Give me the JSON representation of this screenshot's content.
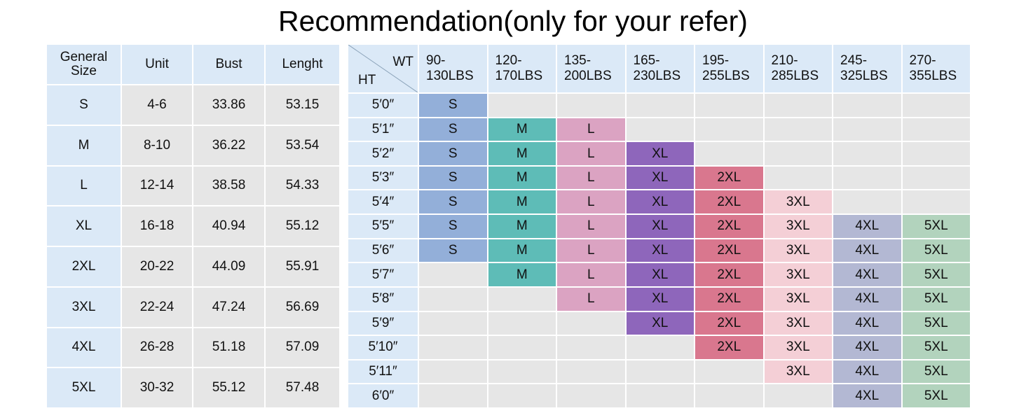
{
  "title": "Recommendation(only for your refer)",
  "size_table": {
    "headers": [
      "General Size",
      "Unit",
      "Bust",
      "Lenght"
    ],
    "rows": [
      [
        "S",
        "4-6",
        "33.86",
        "53.15"
      ],
      [
        "M",
        "8-10",
        "36.22",
        "53.54"
      ],
      [
        "L",
        "12-14",
        "38.58",
        "54.33"
      ],
      [
        "XL",
        "16-18",
        "40.94",
        "55.12"
      ],
      [
        "2XL",
        "20-22",
        "44.09",
        "55.91"
      ],
      [
        "3XL",
        "22-24",
        "47.24",
        "56.69"
      ],
      [
        "4XL",
        "26-28",
        "51.18",
        "57.09"
      ],
      [
        "5XL",
        "30-32",
        "55.12",
        "57.48"
      ]
    ]
  },
  "recommendation": {
    "wt_label": "WT",
    "ht_label": "HT",
    "weights": [
      "90-\n130LBS",
      "120-\n170LBS",
      "135-\n200LBS",
      "165-\n230LBS",
      "195-\n255LBS",
      "210-\n285LBS",
      "245-\n325LBS",
      "270-\n355LBS"
    ],
    "heights": [
      "5′0″",
      "5′1″",
      "5′2″",
      "5′3″",
      "5′4″",
      "5′5″",
      "5′6″",
      "5′7″",
      "5′8″",
      "5′9″",
      "5′10″",
      "5′11″",
      "6′0″"
    ],
    "grid": [
      [
        "S",
        "",
        "",
        "",
        "",
        "",
        "",
        ""
      ],
      [
        "S",
        "M",
        "L",
        "",
        "",
        "",
        "",
        ""
      ],
      [
        "S",
        "M",
        "L",
        "XL",
        "",
        "",
        "",
        ""
      ],
      [
        "S",
        "M",
        "L",
        "XL",
        "2XL",
        "",
        "",
        ""
      ],
      [
        "S",
        "M",
        "L",
        "XL",
        "2XL",
        "3XL",
        "",
        ""
      ],
      [
        "S",
        "M",
        "L",
        "XL",
        "2XL",
        "3XL",
        "4XL",
        "5XL"
      ],
      [
        "S",
        "M",
        "L",
        "XL",
        "2XL",
        "3XL",
        "4XL",
        "5XL"
      ],
      [
        "",
        "M",
        "L",
        "XL",
        "2XL",
        "3XL",
        "4XL",
        "5XL"
      ],
      [
        "",
        "",
        "L",
        "XL",
        "2XL",
        "3XL",
        "4XL",
        "5XL"
      ],
      [
        "",
        "",
        "",
        "XL",
        "2XL",
        "3XL",
        "4XL",
        "5XL"
      ],
      [
        "",
        "",
        "",
        "",
        "2XL",
        "3XL",
        "4XL",
        "5XL"
      ],
      [
        "",
        "",
        "",
        "",
        "",
        "3XL",
        "4XL",
        "5XL"
      ],
      [
        "",
        "",
        "",
        "",
        "",
        "",
        "4XL",
        "5XL"
      ]
    ]
  },
  "colors": {
    "header_bg": "#dbe9f7",
    "empty_bg": "#e6e6e6",
    "S": "#93afd9",
    "M": "#5ebcb7",
    "L": "#dba3c2",
    "XL": "#8e66bb",
    "2XL": "#d9778e",
    "3XL": "#f4cfd6",
    "4XL": "#b3b8d3",
    "5XL": "#b2d3bd"
  }
}
